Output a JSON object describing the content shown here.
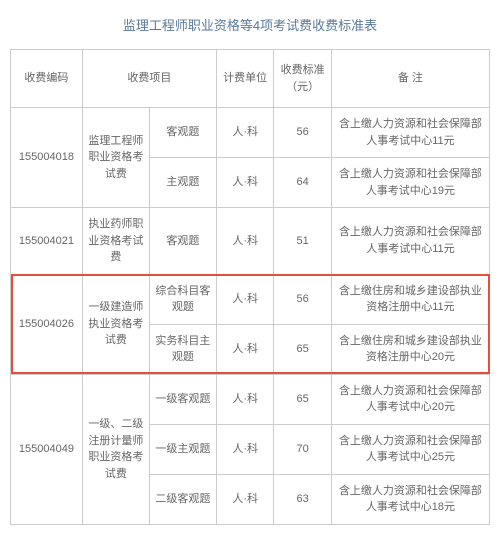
{
  "title": "监理工程师职业资格等4项考试费收费标准表",
  "headers": {
    "code": "收费编码",
    "item": "收费项目",
    "unit": "计费单位",
    "price": "收费标准（元）",
    "note": "备 注"
  },
  "rows": [
    {
      "code": "155004018",
      "item": "监理工程师职业资格考试费",
      "subs": [
        {
          "sub": "客观题",
          "unit": "人·科",
          "price": "56",
          "note": "含上缴人力资源和社会保障部人事考试中心11元"
        },
        {
          "sub": "主观题",
          "unit": "人·科",
          "price": "64",
          "note": "含上缴人力资源和社会保障部人事考试中心19元"
        }
      ]
    },
    {
      "code": "155004021",
      "item": "执业药师职业资格考试费",
      "subs": [
        {
          "sub": "客观题",
          "unit": "人·科",
          "price": "51",
          "note": "含上缴人力资源和社会保障部人事考试中心11元"
        }
      ]
    },
    {
      "code": "155004026",
      "item": "一级建造师执业资格考试费",
      "highlight": true,
      "subs": [
        {
          "sub": "综合科目客观题",
          "unit": "人·科",
          "price": "56",
          "note": "含上缴住房和城乡建设部执业资格注册中心11元"
        },
        {
          "sub": "实务科目主观题",
          "unit": "人·科",
          "price": "65",
          "note": "含上缴住房和城乡建设部执业资格注册中心20元"
        }
      ]
    },
    {
      "code": "155004049",
      "item": "一级、二级注册计量师职业资格考试费",
      "subs": [
        {
          "sub": "一级客观题",
          "unit": "人·科",
          "price": "65",
          "note": "含上缴人力资源和社会保障部人事考试中心20元"
        },
        {
          "sub": "一级主观题",
          "unit": "人·科",
          "price": "70",
          "note": "含上缴人力资源和社会保障部人事考试中心25元"
        },
        {
          "sub": "二级客观题",
          "unit": "人·科",
          "price": "63",
          "note": "含上缴人力资源和社会保障部人事考试中心18元"
        }
      ]
    }
  ],
  "colors": {
    "title_color": "#5a7a9a",
    "border_color": "#cccccc",
    "text_color": "#666666",
    "highlight_border": "#e74c3c",
    "background": "#ffffff"
  },
  "font_sizes": {
    "title": 13,
    "body": 11
  }
}
